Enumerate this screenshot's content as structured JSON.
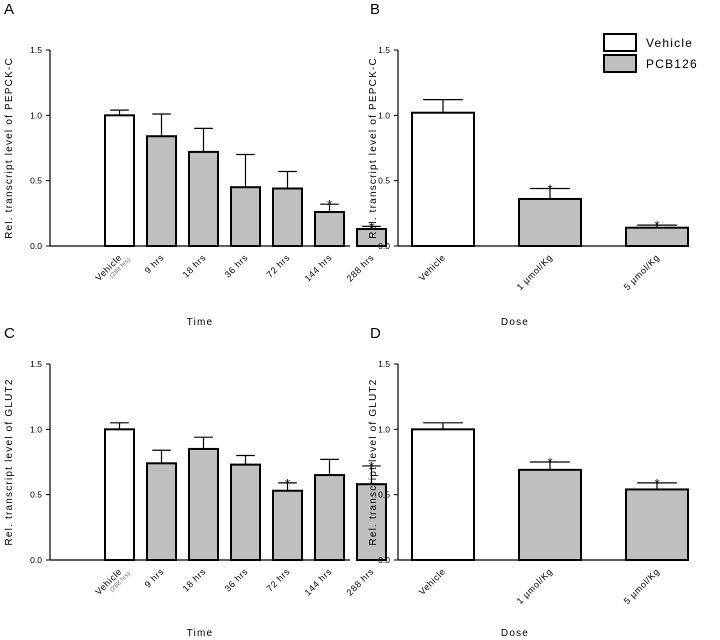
{
  "colors": {
    "vehicle": "#ffffff",
    "pcb126": "#bfbfbf",
    "stroke": "#000000"
  },
  "legend": {
    "items": [
      {
        "label": "Vehicle",
        "color": "#ffffff"
      },
      {
        "label": "PCB126",
        "color": "#bfbfbf"
      }
    ],
    "placement": "top-right"
  },
  "chart_data": [
    {
      "id": "A",
      "panel": "A",
      "type": "bar",
      "ylabel": "Rel. transcript level of PEPCK-C",
      "xlabel": "Time",
      "ylim": [
        0,
        1.5
      ],
      "yticks": [
        "0.0",
        "0.5",
        "1.0",
        "1.5"
      ],
      "categories": [
        "Vehicle",
        "9 hrs",
        "18 hrs",
        "36 hrs",
        "72 hrs",
        "144 hrs",
        "288 hrs"
      ],
      "category_sub": [
        "(288 hrs)",
        "",
        "",
        "",
        "",
        "",
        ""
      ],
      "values": [
        1.0,
        0.84,
        0.72,
        0.45,
        0.44,
        0.26,
        0.13
      ],
      "errors": [
        0.04,
        0.17,
        0.18,
        0.25,
        0.13,
        0.06,
        0.02
      ],
      "significant": [
        false,
        false,
        false,
        false,
        false,
        true,
        true
      ],
      "sig_marker": "*"
    },
    {
      "id": "B",
      "panel": "B",
      "type": "bar",
      "ylabel": "Rel. transcript level of PEPCK-C",
      "xlabel": "Dose",
      "ylim": [
        0,
        1.5
      ],
      "yticks": [
        "0.0",
        "0.5",
        "1.0",
        "1.5"
      ],
      "categories": [
        "Vehicle",
        "1 µmol/Kg",
        "5 µmol/Kg"
      ],
      "category_sub": [
        "",
        "",
        ""
      ],
      "values": [
        1.02,
        0.36,
        0.14
      ],
      "errors": [
        0.1,
        0.08,
        0.02
      ],
      "significant": [
        false,
        true,
        true
      ],
      "sig_marker": "*"
    },
    {
      "id": "C",
      "panel": "C",
      "type": "bar",
      "ylabel": "Rel. transcript level of  GLUT2",
      "xlabel": "Time",
      "ylim": [
        0,
        1.5
      ],
      "yticks": [
        "0.0",
        "0.5",
        "1.0",
        "1.5"
      ],
      "categories": [
        "Vehicle",
        "9 hrs",
        "18 hrs",
        "36 hrs",
        "72 hrs",
        "144 hrs",
        "288 hrs"
      ],
      "category_sub": [
        "(288 hrs)",
        "",
        "",
        "",
        "",
        "",
        ""
      ],
      "values": [
        1.0,
        0.74,
        0.85,
        0.73,
        0.53,
        0.65,
        0.58
      ],
      "errors": [
        0.05,
        0.1,
        0.09,
        0.07,
        0.06,
        0.12,
        0.14
      ],
      "significant": [
        false,
        false,
        false,
        false,
        true,
        false,
        true
      ],
      "sig_marker": "*"
    },
    {
      "id": "D",
      "panel": "D",
      "type": "bar",
      "ylabel": "Rel. transcript level of GLUT2",
      "xlabel": "Dose",
      "ylim": [
        0,
        1.5
      ],
      "yticks": [
        "0.0",
        "0.5",
        "1.0",
        "1.5"
      ],
      "categories": [
        "Vehicle",
        "1 µmol/Kg",
        "5 µmol/Kg"
      ],
      "category_sub": [
        "",
        "",
        ""
      ],
      "values": [
        1.0,
        0.69,
        0.54
      ],
      "errors": [
        0.05,
        0.06,
        0.05
      ],
      "significant": [
        false,
        true,
        true
      ],
      "sig_marker": "*"
    }
  ]
}
